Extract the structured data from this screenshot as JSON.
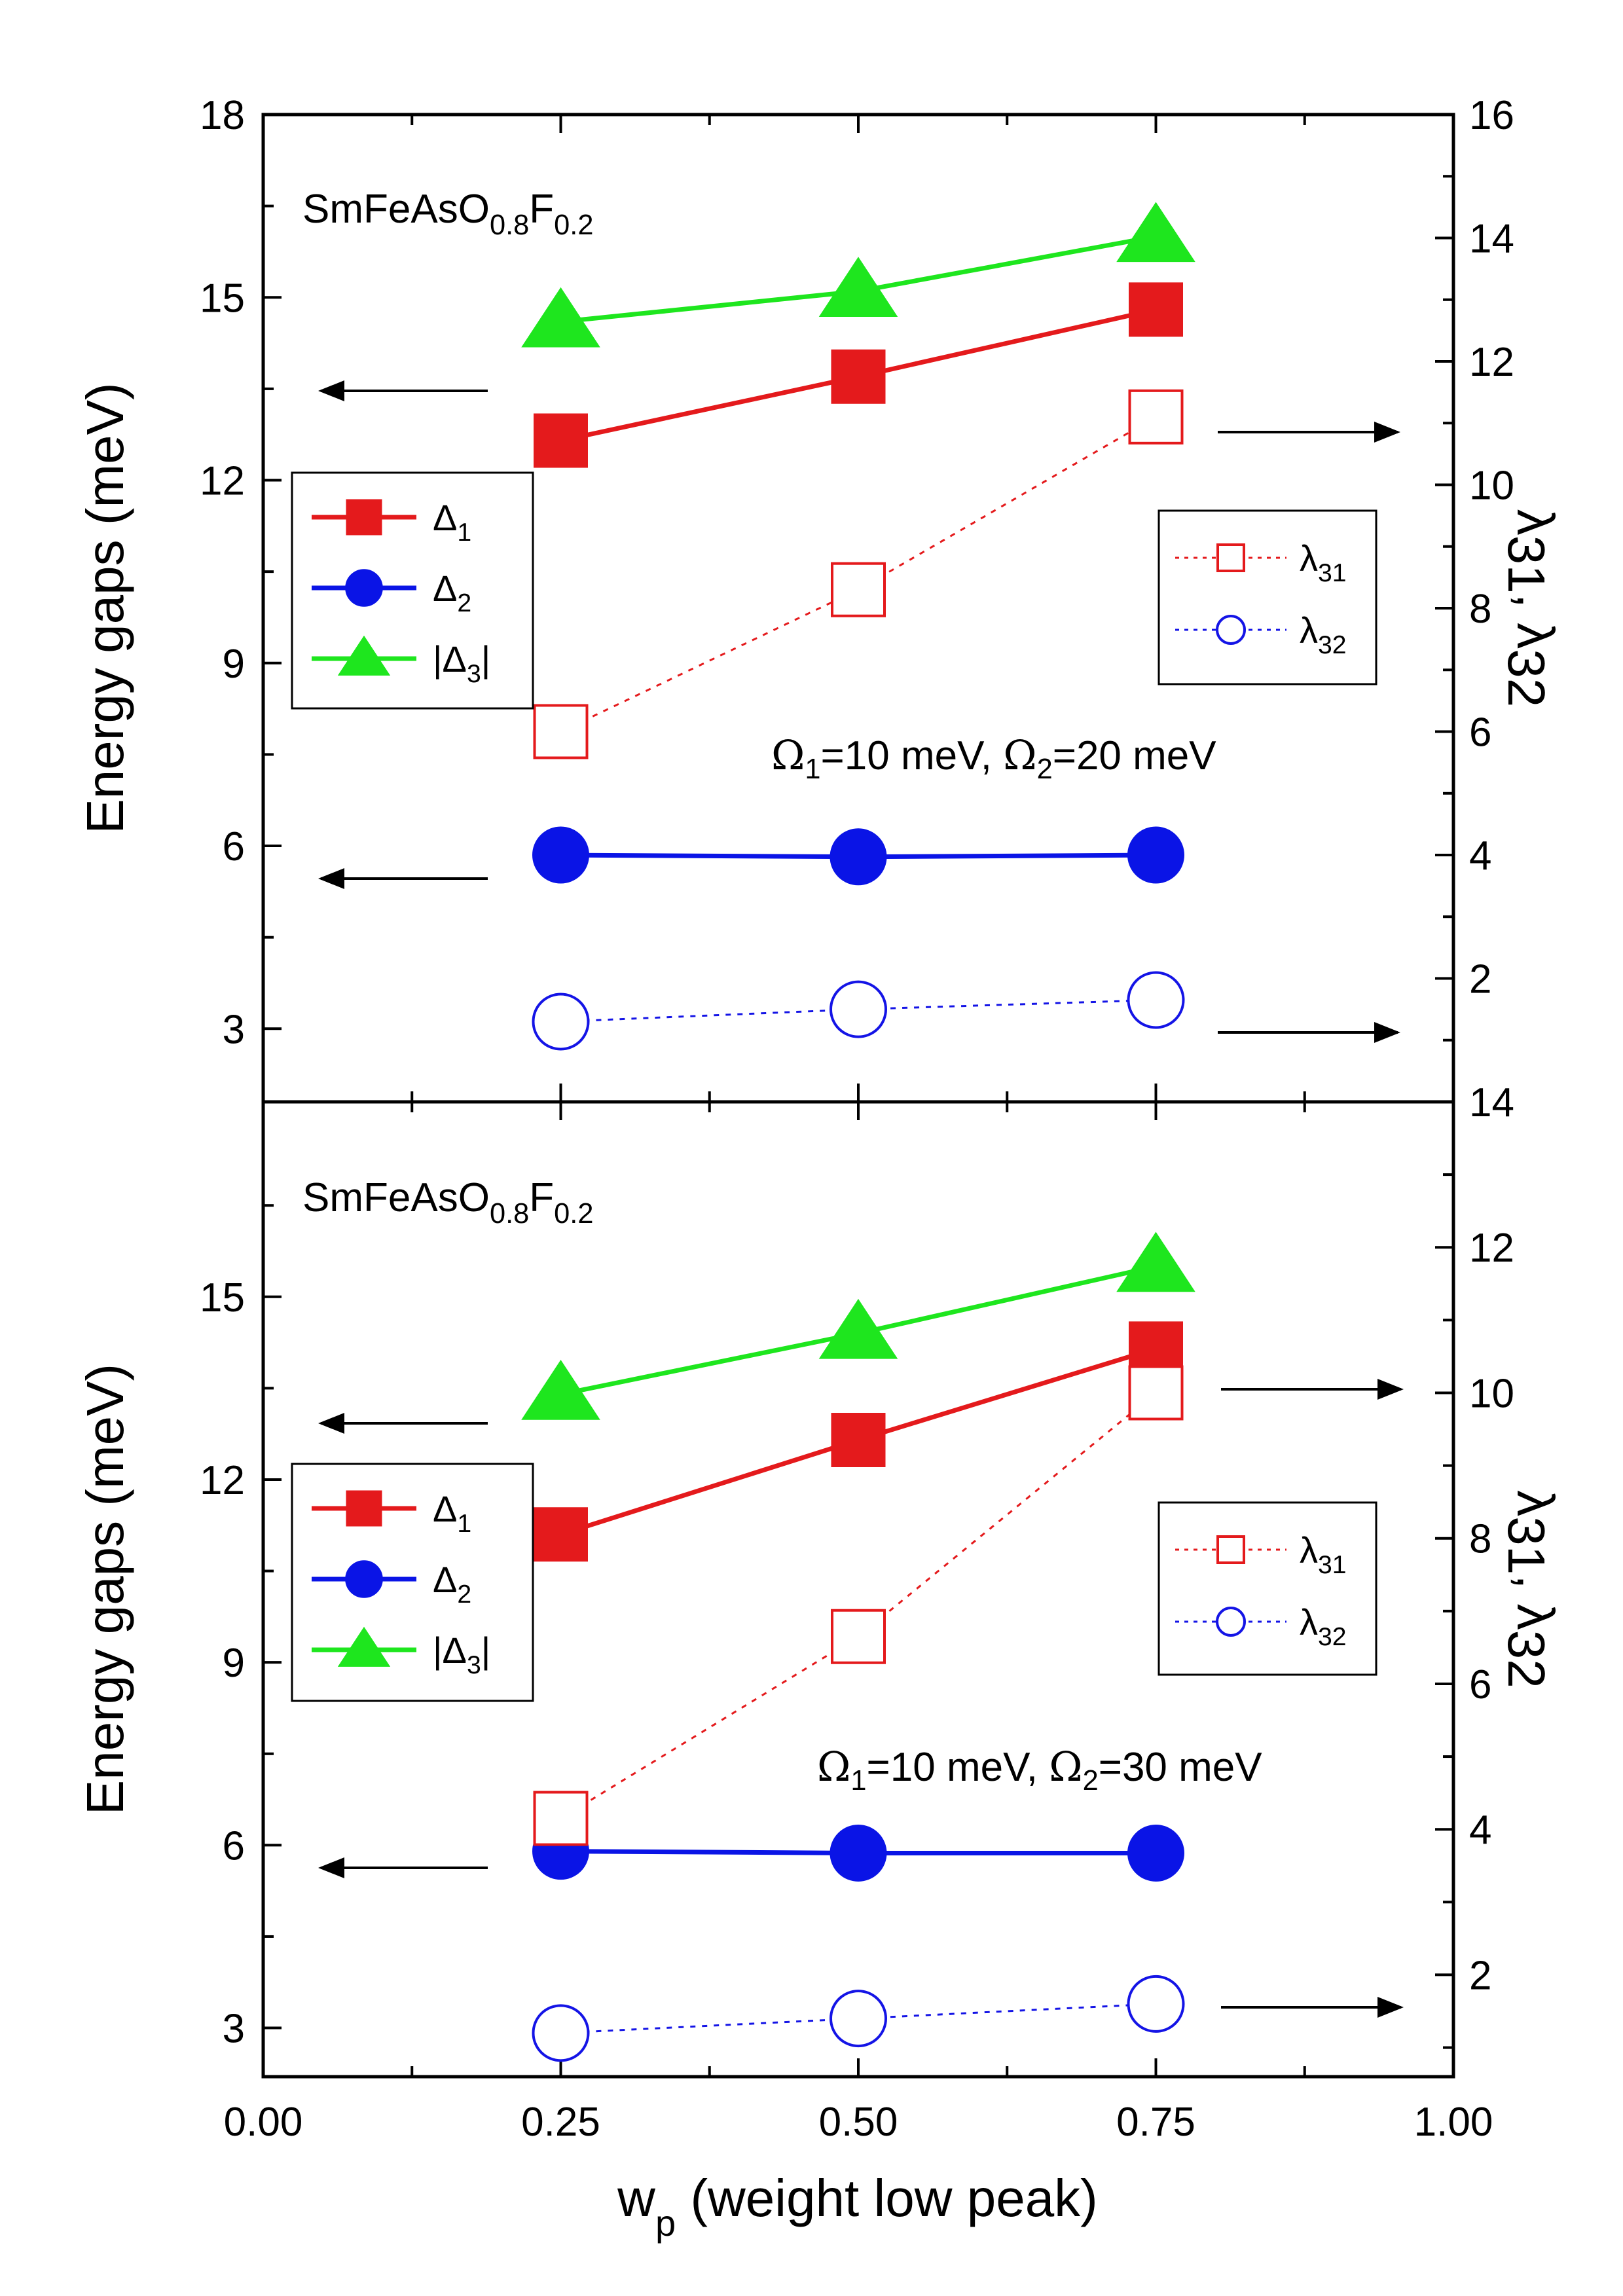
{
  "colors": {
    "delta1": "#e41a1c",
    "delta2": "#0a14e6",
    "delta3": "#1ee61e",
    "lambda31": "#e41a1c",
    "lambda32": "#1414e6",
    "axis": "#000000"
  },
  "shared_x": {
    "title_main": "w",
    "title_sub": "p",
    "title_rest": " (weight low peak)",
    "ticks": [
      "0.00",
      "0.25",
      "0.50",
      "0.75",
      "1.00"
    ]
  },
  "chart_data": [
    {
      "type": "line",
      "panel": "top",
      "compound": {
        "main": "SmFeAsO",
        "s1": "0.8",
        "mid": "F",
        "s2": "0.2"
      },
      "annotation": {
        "o1": "Ω",
        "o1sub": "1",
        "o1val": "=10 meV, ",
        "o2": "Ω",
        "o2sub": "2",
        "o2val": "=20 meV"
      },
      "ylabel": "Energy gaps  (meV)",
      "y2label": {
        "l1": "λ",
        "s1": "31",
        "sep": ", ",
        "l2": "λ",
        "s2": "32"
      },
      "x": [
        0.25,
        0.5,
        0.75
      ],
      "xlim": [
        0,
        1
      ],
      "ylim": [
        1.8,
        18
      ],
      "y2lim": [
        0,
        16
      ],
      "y_ticks": [
        "3",
        "6",
        "9",
        "12",
        "15",
        "18"
      ],
      "y2_ticks": [
        "2",
        "4",
        "6",
        "8",
        "10",
        "12",
        "14",
        "16"
      ],
      "series": [
        {
          "name": "Δ1",
          "axis": "left",
          "values": [
            12.65,
            13.7,
            14.8
          ]
        },
        {
          "name": "Δ2",
          "axis": "left",
          "values": [
            5.85,
            5.82,
            5.85
          ]
        },
        {
          "name": "|Δ3|",
          "axis": "left",
          "values": [
            14.6,
            15.1,
            16.0
          ]
        },
        {
          "name": "λ31",
          "axis": "right",
          "values": [
            6.0,
            8.3,
            11.1
          ]
        },
        {
          "name": "λ32",
          "axis": "right",
          "values": [
            1.3,
            1.5,
            1.65
          ]
        }
      ],
      "legend_left": [
        {
          "pre": "Δ",
          "sub": "1",
          "post": ""
        },
        {
          "pre": "Δ",
          "sub": "2",
          "post": ""
        },
        {
          "pre": "|Δ",
          "sub": "3",
          "post": "|"
        }
      ],
      "legend_right": [
        {
          "pre": "λ",
          "sub": "31"
        },
        {
          "pre": "λ",
          "sub": "32"
        }
      ]
    },
    {
      "type": "line",
      "panel": "bottom",
      "compound": {
        "main": "SmFeAsO",
        "s1": "0.8",
        "mid": "F",
        "s2": "0.2"
      },
      "annotation": {
        "o1": "Ω",
        "o1sub": "1",
        "o1val": "=10 meV, ",
        "o2": "Ω",
        "o2sub": "2",
        "o2val": "=30 meV"
      },
      "ylabel": "Energy gaps (meV)",
      "y2label": {
        "l1": "λ",
        "s1": "31",
        "sep": ", ",
        "l2": "λ",
        "s2": "32"
      },
      "x": [
        0.25,
        0.5,
        0.75
      ],
      "xlim": [
        0,
        1
      ],
      "ylim": [
        2.2,
        18.2
      ],
      "y2lim": [
        0.6,
        14
      ],
      "y_ticks": [
        "3",
        "6",
        "9",
        "12",
        "15"
      ],
      "y2_ticks": [
        "2",
        "4",
        "6",
        "8",
        "10",
        "12",
        "14"
      ],
      "series": [
        {
          "name": "Δ1",
          "axis": "left",
          "values": [
            11.1,
            12.65,
            14.15
          ]
        },
        {
          "name": "Δ2",
          "axis": "left",
          "values": [
            5.9,
            5.87,
            5.87
          ]
        },
        {
          "name": "|Δ3|",
          "axis": "left",
          "values": [
            13.4,
            14.4,
            15.5
          ]
        },
        {
          "name": "λ31",
          "axis": "right",
          "values": [
            4.15,
            6.65,
            10.0
          ]
        },
        {
          "name": "λ32",
          "axis": "right",
          "values": [
            1.2,
            1.4,
            1.6
          ]
        }
      ],
      "legend_left": [
        {
          "pre": "Δ",
          "sub": "1",
          "post": ""
        },
        {
          "pre": "Δ",
          "sub": "2",
          "post": ""
        },
        {
          "pre": "|Δ",
          "sub": "3",
          "post": "|"
        }
      ],
      "legend_right": [
        {
          "pre": "λ",
          "sub": "31"
        },
        {
          "pre": "λ",
          "sub": "32"
        }
      ]
    }
  ]
}
